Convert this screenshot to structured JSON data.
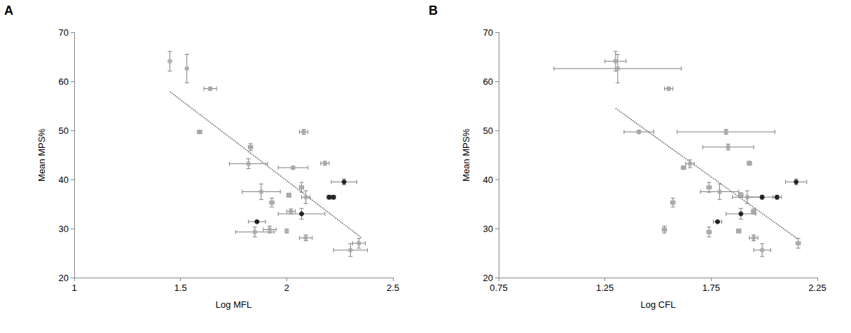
{
  "chart_data": [
    {
      "type": "scatter",
      "title": "A",
      "x_label": "Log MFL",
      "y_label": "Mean MPS%",
      "xlim": [
        1,
        2.5
      ],
      "xticks": [
        1,
        1.5,
        2,
        2.5
      ],
      "ylim": [
        20,
        70
      ],
      "yticks": [
        20,
        30,
        40,
        50,
        60,
        70
      ],
      "grid": false,
      "series": [
        {
          "color": "#a6a6a6",
          "marker": "circle",
          "x": [
            1.45,
            1.53,
            1.64,
            1.59,
            1.83,
            1.82,
            2.08,
            2.03,
            2.18,
            1.88,
            1.93,
            2.01,
            2.07,
            2.09,
            2.02,
            1.85,
            1.92,
            2.0,
            2.09,
            2.3,
            2.34
          ],
          "values": [
            64.1,
            62.6,
            58.5,
            49.7,
            46.6,
            43.2,
            49.7,
            42.4,
            43.3,
            37.5,
            35.3,
            36.8,
            38.4,
            36.4,
            33.5,
            29.3,
            29.8,
            29.5,
            28.1,
            25.6,
            27.0
          ],
          "x_err": [
            0,
            0,
            0.03,
            0.01,
            0.01,
            0.09,
            0.02,
            0.07,
            0.02,
            0.09,
            0.01,
            0.01,
            0.01,
            0.02,
            0.02,
            0.09,
            0.03,
            0,
            0.03,
            0.08,
            0.03
          ],
          "y_err": [
            2.0,
            2.9,
            0.3,
            0.3,
            0.7,
            1.0,
            0.5,
            0.3,
            0.4,
            1.6,
            0.9,
            0.4,
            1.0,
            1.3,
            0.5,
            1.0,
            0.7,
            0.4,
            0.6,
            1.3,
            1.0
          ]
        },
        {
          "color": "#000000",
          "marker": "circle",
          "x": [
            2.27,
            2.2,
            2.22,
            2.07,
            1.86
          ],
          "values": [
            39.5,
            36.4,
            36.4,
            33.0,
            31.4
          ],
          "x_err": [
            0.06,
            0.01,
            0.01,
            0.11,
            0.04
          ],
          "y_err": [
            0.6,
            0.4,
            0.4,
            1.1,
            0.2
          ]
        },
        {
          "type": "line",
          "line_style": "dotted",
          "color": "#595959",
          "x": [
            1.45,
            2.35
          ],
          "values": [
            57.9,
            28.2
          ]
        }
      ]
    },
    {
      "type": "scatter",
      "title": "B",
      "x_label": "Log CFL",
      "y_label": "Mean MPS%",
      "xlim": [
        0.75,
        2.25
      ],
      "xticks": [
        0.75,
        1.25,
        1.75,
        2.25
      ],
      "ylim": [
        20,
        70
      ],
      "yticks": [
        20,
        30,
        40,
        50,
        60,
        70
      ],
      "grid": false,
      "series": [
        {
          "color": "#a6a6a6",
          "marker": "circle",
          "x": [
            1.3,
            1.31,
            1.55,
            1.41,
            1.82,
            1.83,
            1.62,
            1.65,
            1.93,
            1.74,
            1.79,
            1.89,
            1.92,
            1.57,
            1.95,
            1.53,
            1.74,
            1.88,
            1.95,
            1.99,
            2.16
          ],
          "values": [
            64.1,
            62.6,
            58.5,
            49.7,
            49.7,
            46.6,
            42.4,
            43.2,
            43.3,
            38.4,
            37.5,
            36.8,
            36.4,
            35.3,
            33.5,
            29.8,
            29.3,
            29.5,
            28.1,
            25.6,
            27.0
          ],
          "x_err": [
            0.05,
            0.3,
            0.02,
            0.07,
            0.23,
            0.12,
            0.01,
            0.02,
            0.01,
            0.01,
            0.09,
            0.01,
            0.07,
            0.01,
            0.01,
            0.01,
            0.01,
            0.01,
            0.02,
            0.04,
            0.01
          ],
          "y_err": [
            2.0,
            2.9,
            0.3,
            0.3,
            0.5,
            0.6,
            0.3,
            0.8,
            0.4,
            1.0,
            1.6,
            0.5,
            1.3,
            0.9,
            0.5,
            0.7,
            1.0,
            0.4,
            0.6,
            1.3,
            1.0
          ]
        },
        {
          "color": "#000000",
          "marker": "circle",
          "x": [
            2.15,
            1.99,
            2.06,
            1.89,
            1.78
          ],
          "values": [
            39.5,
            36.4,
            36.4,
            33.0,
            31.4
          ],
          "x_err": [
            0.05,
            0.07,
            0.02,
            0.07,
            0.02
          ],
          "y_err": [
            0.6,
            0.4,
            0.4,
            1.1,
            0.2
          ]
        },
        {
          "type": "line",
          "line_style": "dotted",
          "color": "#595959",
          "x": [
            1.3,
            2.16
          ],
          "values": [
            54.5,
            27.8
          ]
        }
      ]
    }
  ]
}
